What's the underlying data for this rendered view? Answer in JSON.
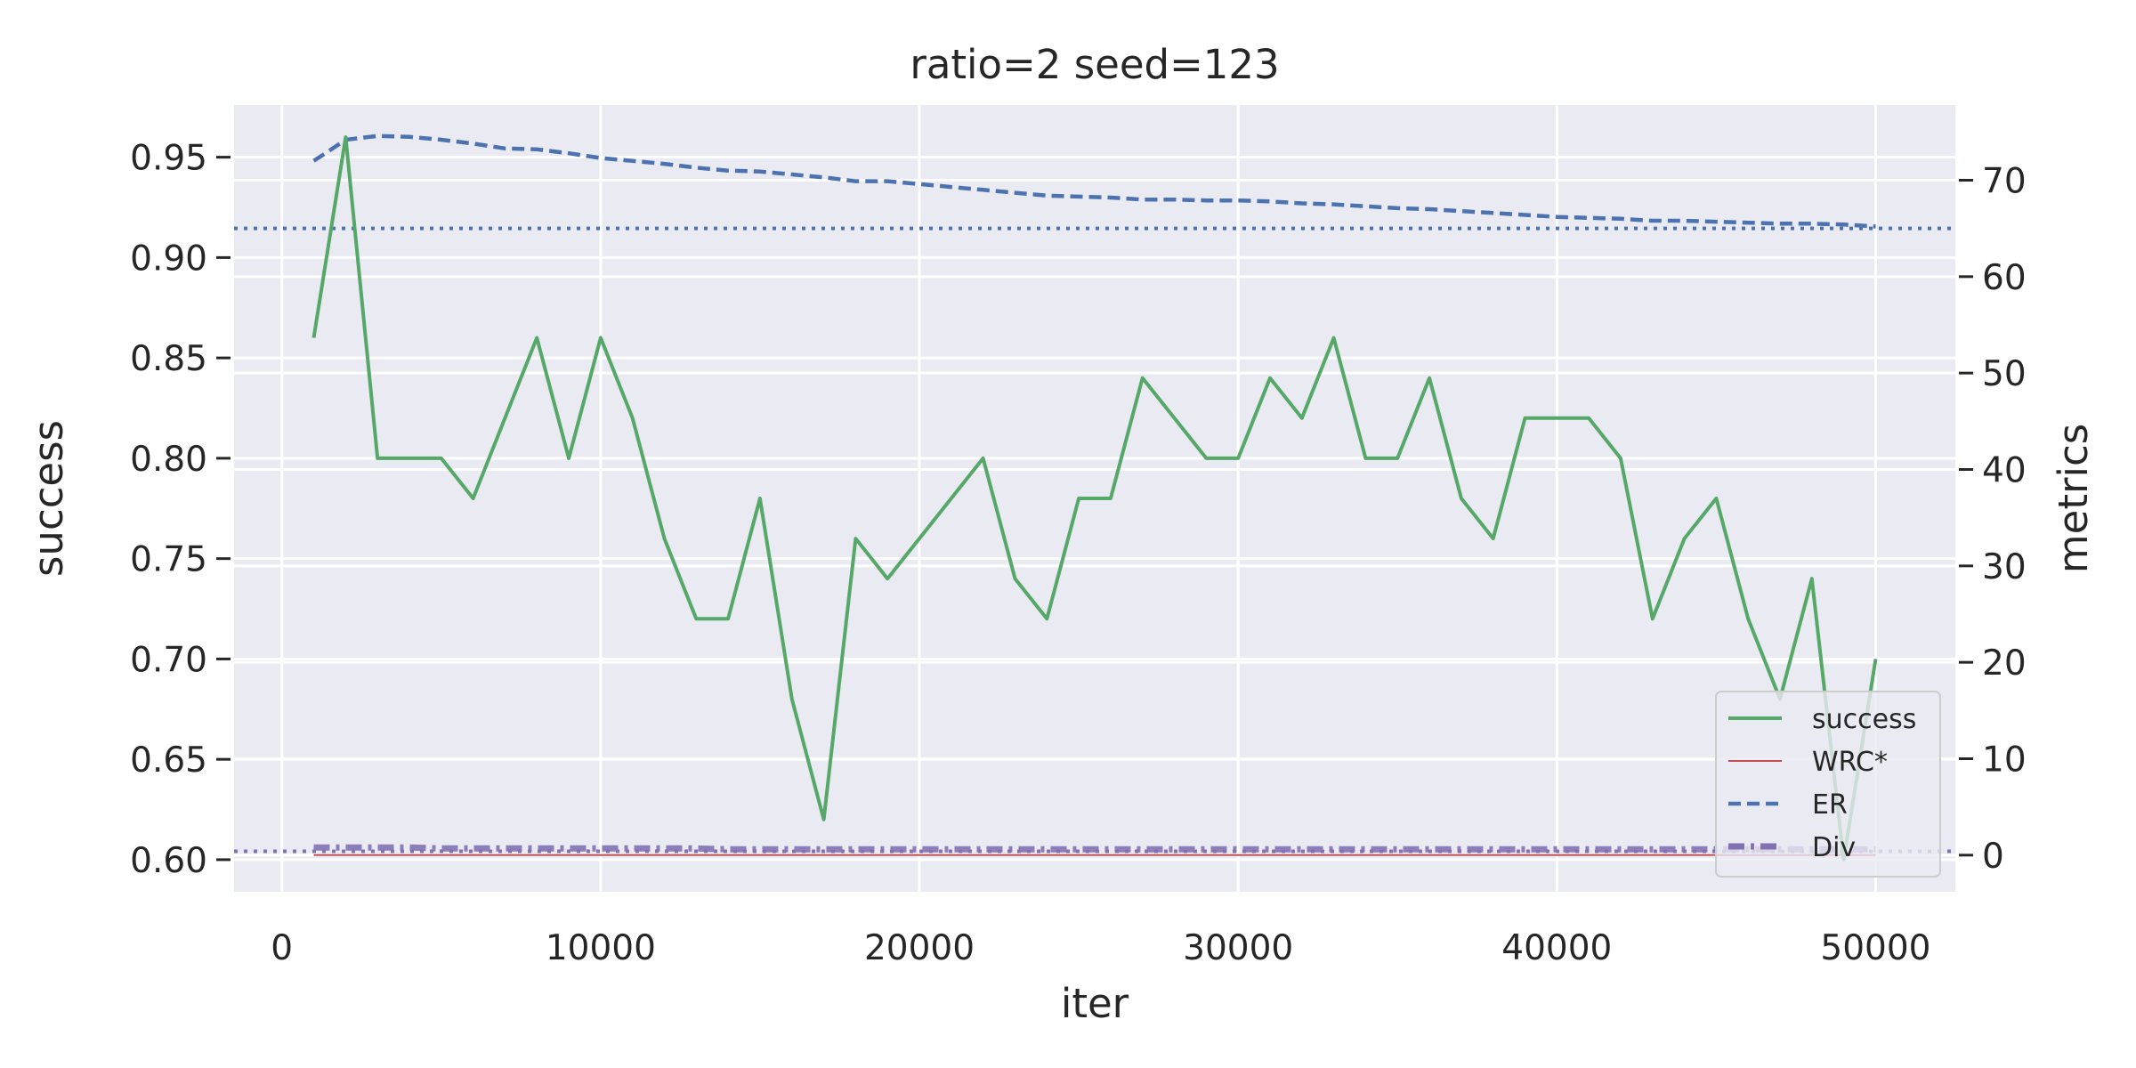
{
  "chart_data": {
    "type": "line",
    "title": "ratio=2 seed=123",
    "xlabel": "iter",
    "ylabel_left": "success",
    "ylabel_right": "metrics",
    "xlim": [
      -1500,
      52500
    ],
    "ylim_left": [
      0.584,
      0.976
    ],
    "ylim_right": [
      -3.8,
      77.8
    ],
    "x_ticks": [
      0,
      10000,
      20000,
      30000,
      40000,
      50000
    ],
    "y_left_ticks": [
      0.6,
      0.65,
      0.7,
      0.75,
      0.8,
      0.85,
      0.9,
      0.95
    ],
    "y_right_ticks": [
      0,
      10,
      20,
      30,
      40,
      50,
      60,
      70
    ],
    "grid": true,
    "legend_position": "lower-right",
    "x": [
      1000,
      2000,
      3000,
      4000,
      5000,
      6000,
      7000,
      8000,
      9000,
      10000,
      11000,
      12000,
      13000,
      14000,
      15000,
      16000,
      17000,
      18000,
      19000,
      20000,
      21000,
      22000,
      23000,
      24000,
      25000,
      26000,
      27000,
      28000,
      29000,
      30000,
      31000,
      32000,
      33000,
      34000,
      35000,
      36000,
      37000,
      38000,
      39000,
      40000,
      41000,
      42000,
      43000,
      44000,
      45000,
      46000,
      47000,
      48000,
      49000,
      50000
    ],
    "series": [
      {
        "name": "success",
        "axis": "left",
        "color": "#55a868",
        "style": "solid",
        "values": [
          0.86,
          0.96,
          0.8,
          0.8,
          0.8,
          0.78,
          0.82,
          0.86,
          0.8,
          0.86,
          0.82,
          0.76,
          0.72,
          0.72,
          0.78,
          0.68,
          0.62,
          0.76,
          0.74,
          0.76,
          0.78,
          0.8,
          0.74,
          0.72,
          0.78,
          0.78,
          0.84,
          0.82,
          0.8,
          0.8,
          0.84,
          0.82,
          0.86,
          0.8,
          0.8,
          0.84,
          0.78,
          0.76,
          0.82,
          0.82,
          0.82,
          0.8,
          0.72,
          0.76,
          0.78,
          0.72,
          0.68,
          0.74,
          0.6,
          0.7
        ]
      },
      {
        "name": "WRC*",
        "axis": "right",
        "color": "#c44e52",
        "style": "solid-thin",
        "values": [
          0,
          0,
          0,
          0,
          0,
          0,
          0,
          0,
          0,
          0,
          0,
          0,
          0,
          0,
          0,
          0,
          0,
          0,
          0,
          0,
          0,
          0,
          0,
          0,
          0,
          0,
          0,
          0,
          0,
          0,
          0,
          0,
          0,
          0,
          0,
          0,
          0,
          0,
          0,
          0,
          0,
          0,
          0,
          0,
          0,
          0,
          0,
          0,
          0,
          0
        ]
      },
      {
        "name": "ER",
        "axis": "right",
        "color": "#4c72b0",
        "style": "dashed",
        "values": [
          72.0,
          74.2,
          74.6,
          74.5,
          74.2,
          73.8,
          73.3,
          73.2,
          72.8,
          72.3,
          72.0,
          71.7,
          71.3,
          71.0,
          70.9,
          70.6,
          70.3,
          69.9,
          69.9,
          69.6,
          69.3,
          69.0,
          68.7,
          68.4,
          68.3,
          68.2,
          68.0,
          68.0,
          67.9,
          67.9,
          67.8,
          67.6,
          67.5,
          67.3,
          67.1,
          67.0,
          66.8,
          66.6,
          66.4,
          66.2,
          66.1,
          66.0,
          65.8,
          65.8,
          65.7,
          65.6,
          65.5,
          65.5,
          65.4,
          65.2
        ]
      },
      {
        "name": "Div",
        "axis": "right",
        "color": "#8172b2",
        "style": "dashdot",
        "values": [
          0.8,
          0.8,
          0.8,
          0.8,
          0.7,
          0.7,
          0.7,
          0.7,
          0.7,
          0.7,
          0.7,
          0.7,
          0.7,
          0.6,
          0.6,
          0.6,
          0.6,
          0.6,
          0.6,
          0.6,
          0.6,
          0.6,
          0.6,
          0.6,
          0.6,
          0.6,
          0.6,
          0.6,
          0.6,
          0.6,
          0.6,
          0.6,
          0.6,
          0.6,
          0.6,
          0.6,
          0.6,
          0.6,
          0.6,
          0.6,
          0.6,
          0.6,
          0.6,
          0.6,
          0.6,
          0.6,
          0.6,
          0.6,
          0.6,
          0.6
        ]
      }
    ],
    "reference_lines": [
      {
        "axis": "right",
        "value": 65.0,
        "color": "#4c72b0",
        "style": "dotted"
      },
      {
        "axis": "right",
        "value": 0.4,
        "color": "#8172b2",
        "style": "dotted"
      }
    ]
  }
}
